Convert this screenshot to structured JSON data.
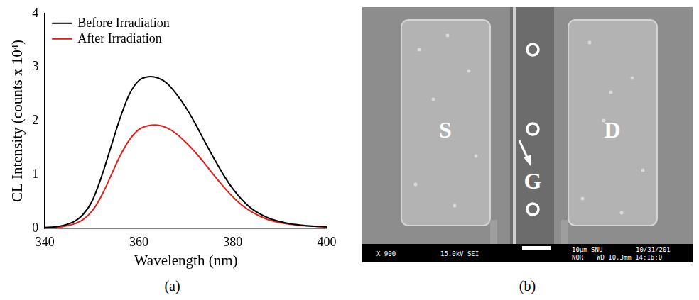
{
  "chart_data": {
    "type": "line",
    "x_label": "Wavelength (nm)",
    "y_label": "CL Intensity (counts x 10⁴)",
    "xlim": [
      340,
      400
    ],
    "xticks": [
      340,
      360,
      380,
      400
    ],
    "ylim": [
      0,
      4
    ],
    "yticks": [
      0,
      1,
      2,
      3,
      4
    ],
    "grid": false,
    "legend": "upper left",
    "x": [
      340,
      342,
      344,
      346,
      348,
      350,
      352,
      354,
      356,
      358,
      360,
      362,
      364,
      366,
      368,
      370,
      372,
      374,
      376,
      378,
      380,
      382,
      384,
      386,
      388,
      390,
      392,
      394,
      396,
      398,
      400
    ],
    "series": [
      {
        "name": "Before Irradiation",
        "color": "#000000",
        "values": [
          0.02,
          0.03,
          0.06,
          0.12,
          0.25,
          0.5,
          0.95,
          1.5,
          2.05,
          2.5,
          2.75,
          2.82,
          2.8,
          2.7,
          2.5,
          2.25,
          1.95,
          1.62,
          1.3,
          1.0,
          0.74,
          0.53,
          0.37,
          0.26,
          0.18,
          0.13,
          0.09,
          0.07,
          0.05,
          0.04,
          0.03
        ]
      },
      {
        "name": "After Irradiation",
        "color": "#e0201b",
        "values": [
          0.01,
          0.02,
          0.04,
          0.08,
          0.16,
          0.32,
          0.6,
          0.97,
          1.35,
          1.65,
          1.84,
          1.91,
          1.92,
          1.87,
          1.76,
          1.6,
          1.42,
          1.21,
          0.99,
          0.78,
          0.59,
          0.43,
          0.31,
          0.22,
          0.15,
          0.11,
          0.08,
          0.06,
          0.05,
          0.04,
          0.03
        ]
      }
    ]
  },
  "panel_captions": [
    "(a)",
    "(b)"
  ],
  "sem_image": {
    "labels": {
      "left": "S",
      "center": "G",
      "right": "D"
    },
    "info_bar": [
      "X 900",
      "15.0kV SEI",
      "10μm SNU",
      "10/31/201",
      "NOR",
      "WD 10.3mm 14:16:0"
    ]
  }
}
